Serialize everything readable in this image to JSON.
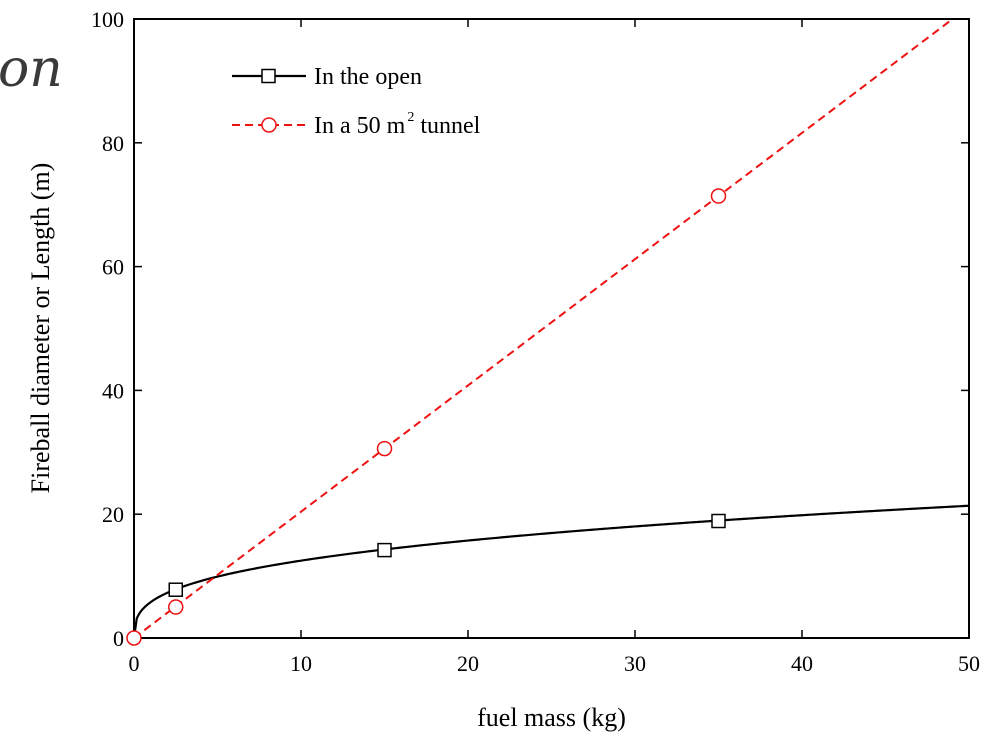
{
  "fragment_text": "on",
  "chart_data": {
    "type": "line",
    "xlabel": "fuel mass (kg)",
    "ylabel": "Fireball diameter or Length (m)",
    "xlim": [
      0,
      50
    ],
    "ylim": [
      0,
      100
    ],
    "xticks": [
      0,
      10,
      20,
      30,
      40,
      50
    ],
    "yticks": [
      0,
      20,
      40,
      60,
      80,
      100
    ],
    "xtick_labels": [
      "0",
      "10",
      "20",
      "30",
      "40",
      "50"
    ],
    "ytick_labels": [
      "0",
      "20",
      "40",
      "60",
      "80",
      "100"
    ],
    "grid": false,
    "legend_position": "top-left",
    "series": [
      {
        "name": "In the open",
        "color": "#000000",
        "line_style": "solid",
        "marker": "square",
        "curve_formula": "5.8*m^(1/3)",
        "markers": [
          {
            "x": 2.5,
            "y": 7.8
          },
          {
            "x": 15,
            "y": 14.2
          },
          {
            "x": 35,
            "y": 18.9
          }
        ]
      },
      {
        "name_prefix": "In a 50 m",
        "name_superscript": "2",
        "name_suffix": " tunnel",
        "color": "#ee1111",
        "line_style": "dashed",
        "marker": "circle",
        "curve_formula": "2.04*m",
        "markers": [
          {
            "x": 0,
            "y": 0
          },
          {
            "x": 2.5,
            "y": 5.0
          },
          {
            "x": 15,
            "y": 30.6
          },
          {
            "x": 35,
            "y": 71.4
          }
        ]
      }
    ]
  }
}
